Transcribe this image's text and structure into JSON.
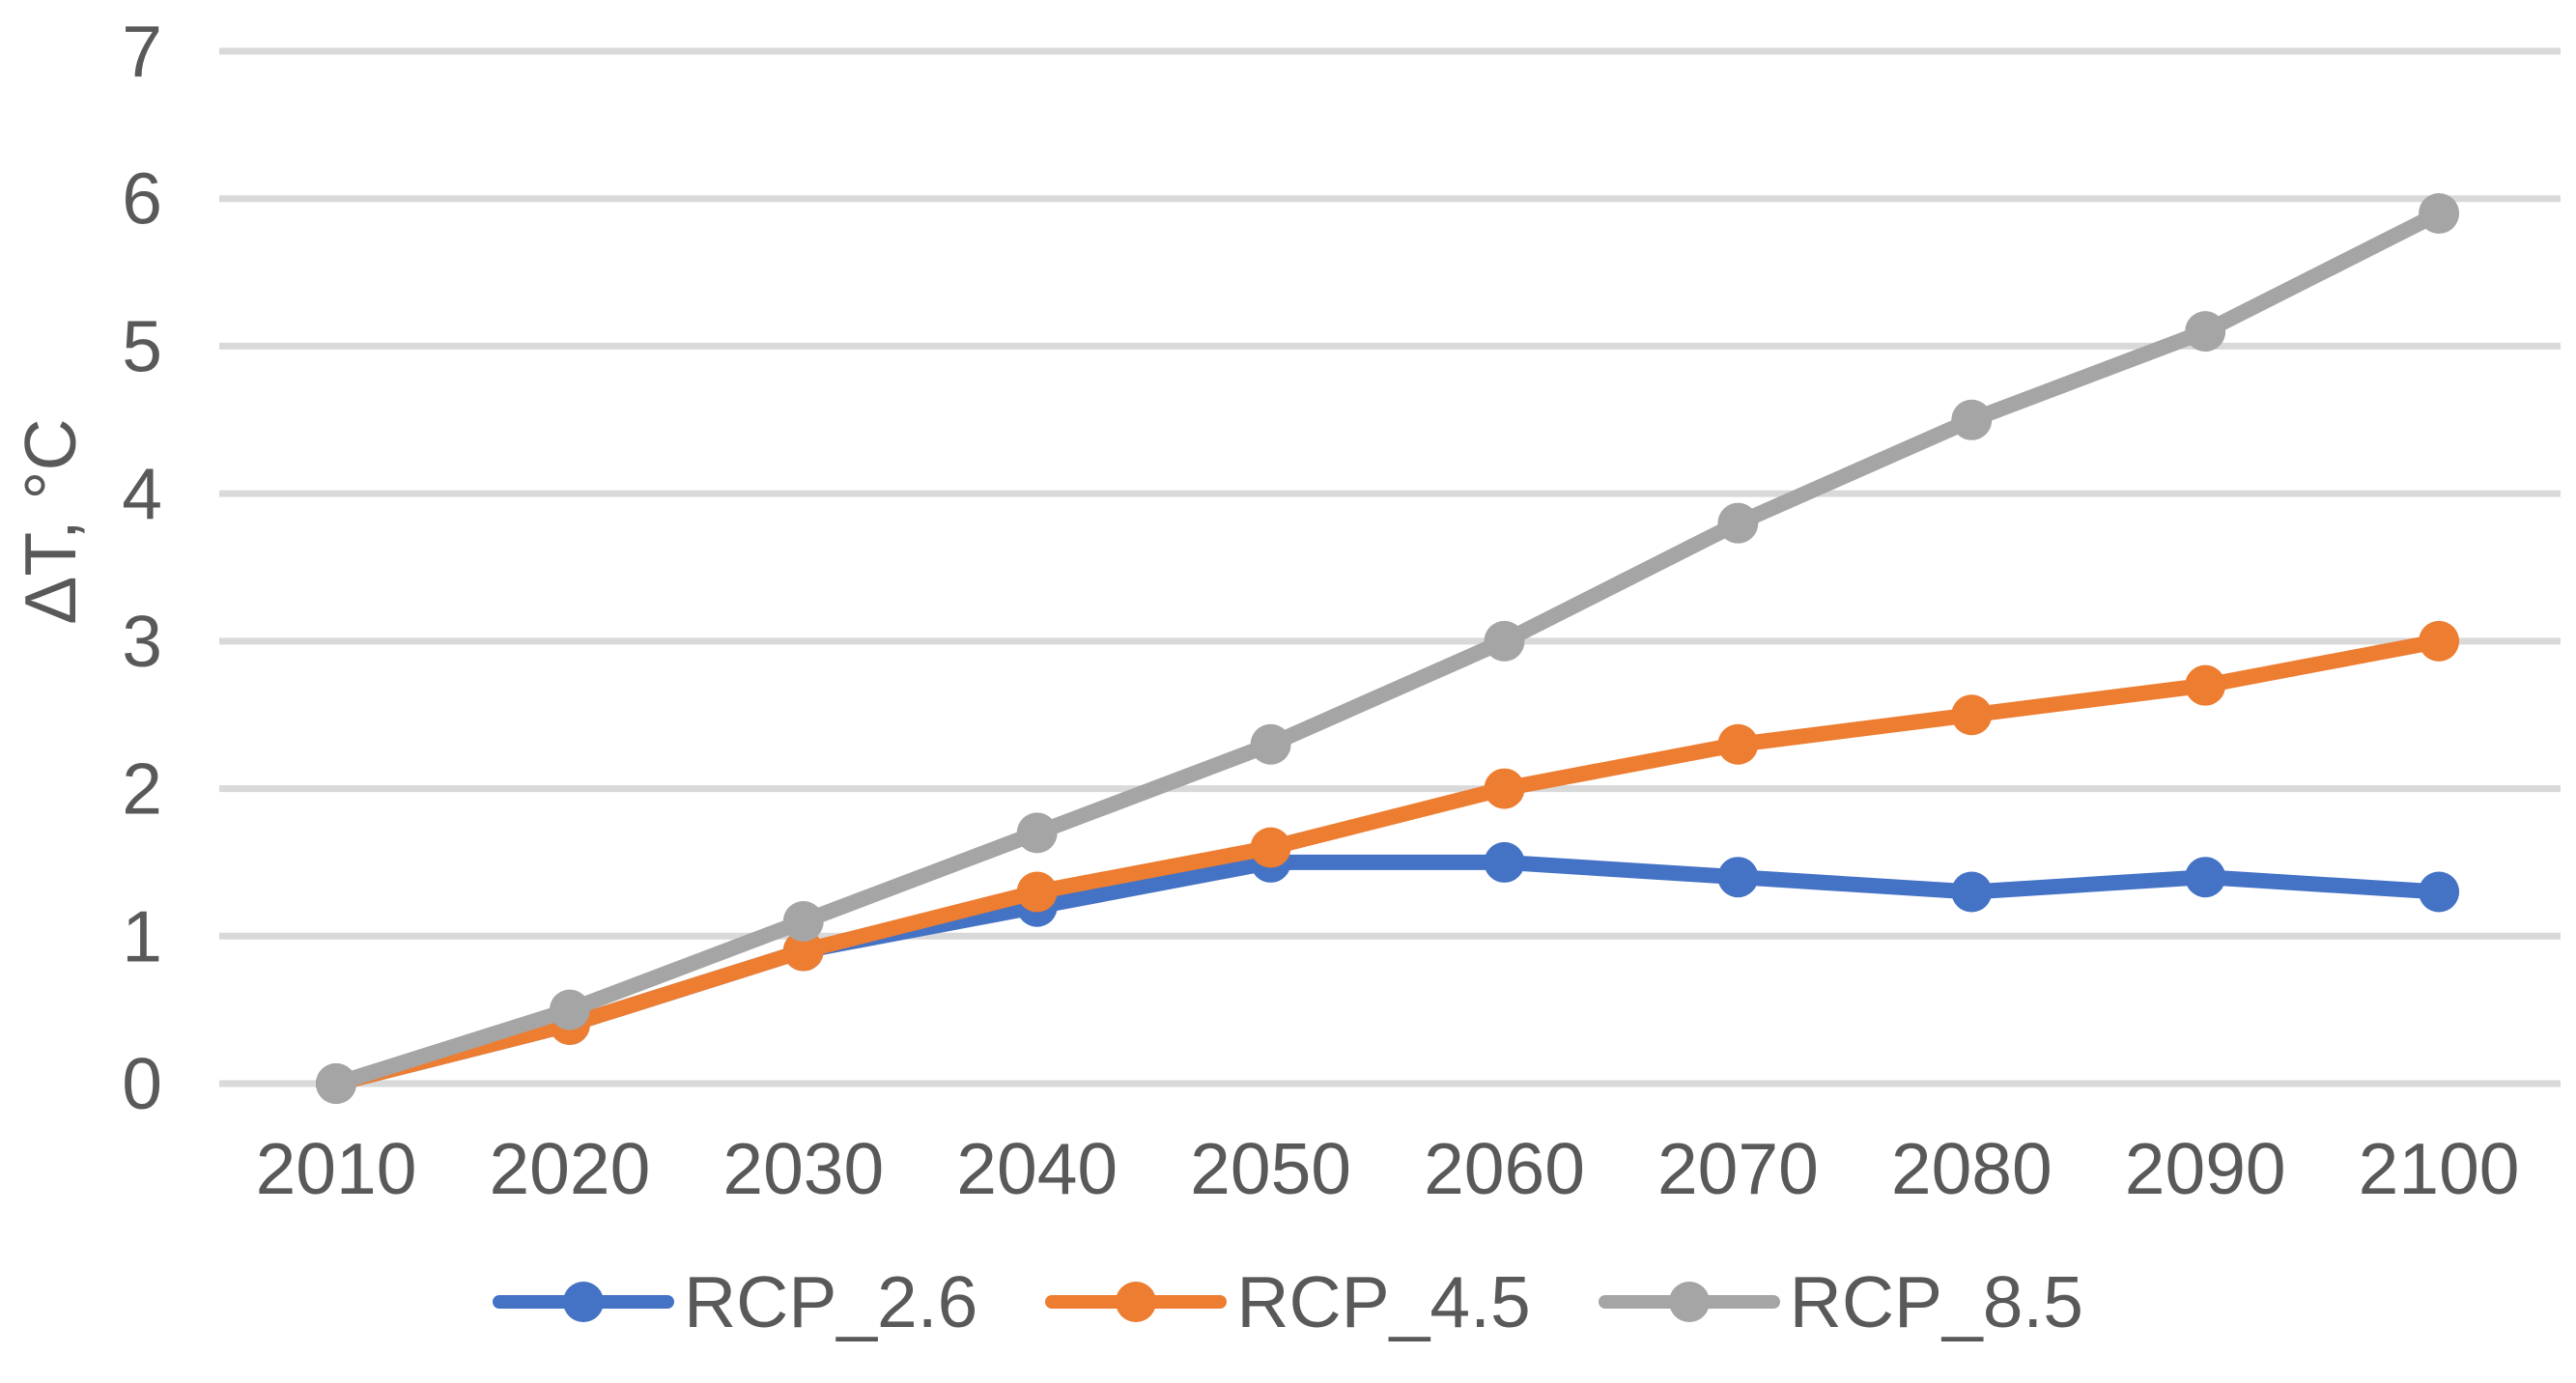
{
  "chart_data": {
    "type": "line",
    "title": "",
    "xlabel": "",
    "ylabel": "ΔT, °C",
    "x": [
      2010,
      2020,
      2030,
      2040,
      2050,
      2060,
      2070,
      2080,
      2090,
      2100
    ],
    "series": [
      {
        "name": "RCP_2.6",
        "color": "#4472C4",
        "values": [
          0,
          0.4,
          0.9,
          1.2,
          1.5,
          1.5,
          1.4,
          1.3,
          1.4,
          1.3
        ]
      },
      {
        "name": "RCP_4.5",
        "color": "#ED7D31",
        "values": [
          0,
          0.4,
          0.9,
          1.3,
          1.6,
          2.0,
          2.3,
          2.5,
          2.7,
          3.0
        ]
      },
      {
        "name": "RCP_8.5",
        "color": "#A5A5A5",
        "values": [
          0,
          0.5,
          1.1,
          1.7,
          2.3,
          3.0,
          3.8,
          4.5,
          5.1,
          5.9
        ]
      }
    ],
    "ylim": [
      0,
      7
    ],
    "yticks": [
      0,
      1,
      2,
      3,
      4,
      5,
      6,
      7
    ],
    "grid": true,
    "legend_position": "bottom",
    "colors": {
      "text": "#595959",
      "gridline": "#D9D9D9",
      "background": "#FFFFFF"
    }
  }
}
